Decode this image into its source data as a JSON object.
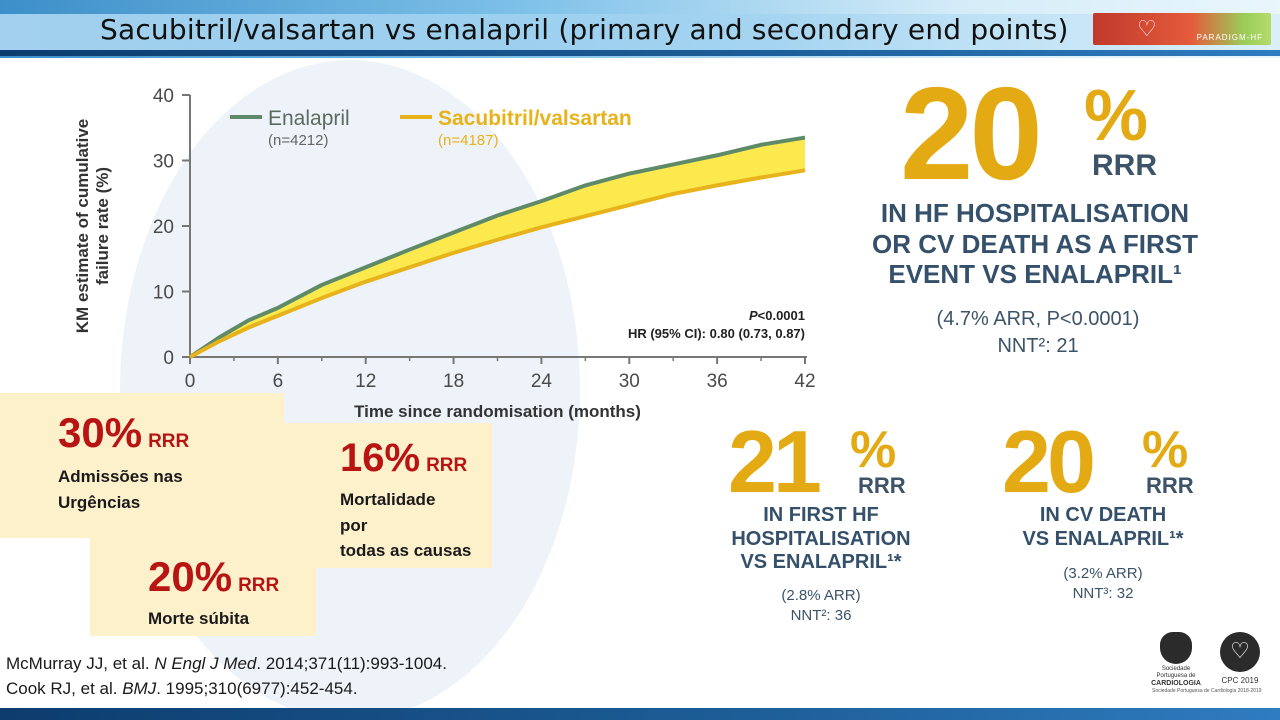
{
  "page": {
    "title": "Sacubitril/valsartan vs enalapril (primary and secondary end points)"
  },
  "header_logo": {
    "text": "PARADIGM-HF"
  },
  "chart_data": {
    "type": "line",
    "title": "",
    "xlabel": "Time since randomisation (months)",
    "ylabel_lines": [
      "KM estimate of cumulative",
      "failure rate (%)"
    ],
    "xlim": [
      0,
      42
    ],
    "ylim": [
      0,
      40
    ],
    "x_ticks": [
      0,
      6,
      12,
      18,
      24,
      30,
      36,
      42
    ],
    "y_ticks": [
      0,
      10,
      20,
      30,
      40
    ],
    "grid": false,
    "legend_position": "top",
    "fill_between": true,
    "series": [
      {
        "name": "Enalapril",
        "n_label": "(n=4212)",
        "color": "#5e8a6a",
        "x": [
          0,
          2,
          4,
          6,
          9,
          12,
          15,
          18,
          21,
          24,
          27,
          30,
          33,
          36,
          39,
          42
        ],
        "y": [
          0,
          3,
          5.6,
          7.5,
          11,
          13.7,
          16.4,
          19,
          21.6,
          23.8,
          26.2,
          28,
          29.4,
          30.8,
          32.4,
          33.5
        ]
      },
      {
        "name": "Sacubitril/valsartan",
        "n_label": "(n=4187)",
        "color": "#e8b21a",
        "x": [
          0,
          2,
          4,
          6,
          9,
          12,
          15,
          18,
          21,
          24,
          27,
          30,
          33,
          36,
          39,
          42
        ],
        "y": [
          0,
          2.4,
          4.5,
          6.3,
          9,
          11.5,
          13.7,
          15.9,
          17.9,
          19.8,
          21.5,
          23.2,
          24.9,
          26.2,
          27.4,
          28.5
        ]
      }
    ],
    "annotations": {
      "p_value": "<0.0001",
      "p_label": "P",
      "hr": "HR (95% CI): 0.80 (0.73, 0.87)"
    }
  },
  "headline": {
    "pct": "20",
    "pct_sign": "%",
    "rrr": "RRR",
    "claim_lines": [
      "IN HF HOSPITALISATION",
      "OR CV DEATH AS A FIRST",
      "EVENT VS ENALAPRIL¹"
    ],
    "sub_line1": "(4.7% ARR, P<0.0001)",
    "sub_line2": "NNT²: 21"
  },
  "secondary": [
    {
      "pct": "21",
      "pct_sign": "%",
      "rrr": "RRR",
      "claim_lines": [
        "IN FIRST HF",
        "HOSPITALISATION",
        "VS ENALAPRIL¹*"
      ],
      "sub_line1": "(2.8% ARR)",
      "sub_line2": "NNT²: 36"
    },
    {
      "pct": "20",
      "pct_sign": "%",
      "rrr": "RRR",
      "claim_lines": [
        "IN CV DEATH",
        "VS ENALAPRIL¹*"
      ],
      "sub_line1": "(3.2% ARR)",
      "sub_line2": "NNT³: 32"
    }
  ],
  "boxes": [
    {
      "pct": "30%",
      "rrr": "RRR",
      "lines": [
        "Admissões nas",
        "Urgências"
      ]
    },
    {
      "pct": "16%",
      "rrr": "RRR",
      "lines": [
        "Mortalidade",
        "por",
        "todas as causas"
      ]
    },
    {
      "pct": "20%",
      "rrr": "RRR",
      "lines": [
        "Morte súbita"
      ]
    }
  ],
  "references": [
    {
      "pre": "McMurray JJ, et al. ",
      "journal": "N Engl J Med",
      "post": ". 2014;371(11):993-1004."
    },
    {
      "pre": "Cook RJ, et al. ",
      "journal": "BMJ",
      "post": ". 1995;310(6977):452-454."
    }
  ],
  "logos": {
    "spc_lines": [
      "Sociedade Portuguesa de",
      "CARDIOLOGIA"
    ],
    "cpc": "CPC 2019",
    "footer": "Sociedade Portuguesa de Cardiologia 2018-2019"
  }
}
